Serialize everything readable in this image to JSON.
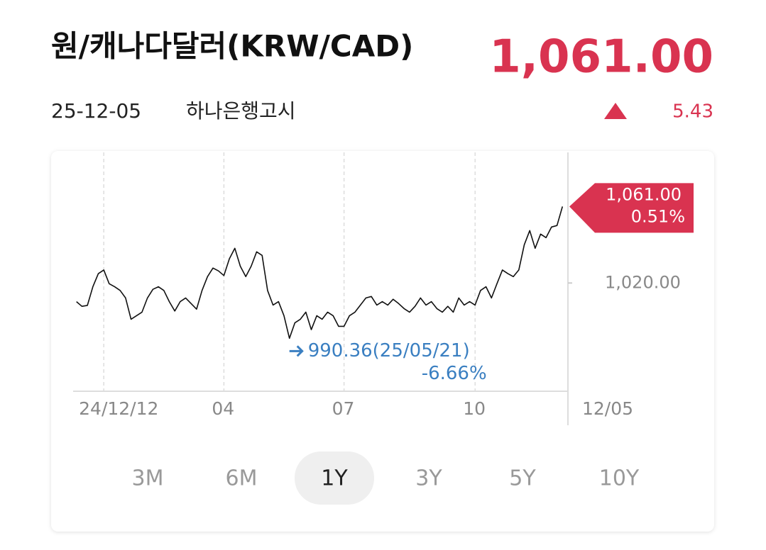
{
  "header": {
    "title": "원/캐나다달러(KRW/CAD)",
    "price": "1,061.00",
    "date": "25-12-05",
    "source": "하나은행고시",
    "change": "5.43"
  },
  "chart_data": {
    "type": "line",
    "x": [
      0,
      1,
      2,
      3,
      4,
      5,
      6,
      7,
      8,
      9,
      10,
      11,
      12,
      13,
      14,
      15,
      16,
      17,
      18,
      19,
      20,
      21,
      22,
      23,
      24,
      25,
      26,
      27,
      28,
      29,
      30,
      31,
      32,
      33,
      34,
      35,
      36,
      37,
      38,
      39,
      40,
      41,
      42,
      43,
      44,
      45,
      46,
      47,
      48,
      49,
      50,
      51,
      52,
      53,
      54,
      55,
      56,
      57,
      58,
      59,
      60,
      61,
      62,
      63,
      64,
      65,
      66,
      67,
      68,
      69,
      70,
      71,
      72,
      73,
      74,
      75,
      76,
      77,
      78,
      79,
      80,
      81,
      82,
      83,
      84,
      85,
      86,
      87,
      88,
      89
    ],
    "series": [
      {
        "color": "#111111",
        "values": [
          1010,
          1007.5,
          1008,
          1018,
          1025,
          1027,
          1019.6,
          1018,
          1016,
          1012,
          1000.6,
          1002.5,
          1004.4,
          1012,
          1016.6,
          1018,
          1016,
          1010,
          1005,
          1010,
          1012,
          1009,
          1006,
          1016,
          1023.4,
          1028,
          1026.5,
          1024,
          1033,
          1038.6,
          1029,
          1023.4,
          1029,
          1036.7,
          1034.8,
          1016,
          1008.2,
          1010,
          1002.5,
          990.36,
          998.7,
          1000.6,
          1004.4,
          995,
          1002.5,
          1000.6,
          1004.4,
          1002.5,
          996.8,
          996.8,
          1002.5,
          1004.4,
          1008.2,
          1012,
          1012.8,
          1008.2,
          1010,
          1008.2,
          1011.3,
          1009,
          1006.3,
          1004.4,
          1007.5,
          1012,
          1008.2,
          1010,
          1006.3,
          1004.4,
          1007.5,
          1004.4,
          1012,
          1008.2,
          1010,
          1008.2,
          1016,
          1018,
          1012,
          1019.6,
          1027,
          1025,
          1023.4,
          1027,
          1040.5,
          1048.1,
          1038.6,
          1046.2,
          1044.3,
          1050,
          1050.8,
          1061
        ]
      }
    ],
    "xlim": [
      -1,
      90
    ],
    "xticks": [
      {
        "value": 5,
        "label": "24/12/12"
      },
      {
        "value": 27,
        "label": "04"
      },
      {
        "value": 49,
        "label": "07"
      },
      {
        "value": 73,
        "label": "10"
      },
      {
        "value": 90,
        "label": "12/05"
      }
    ],
    "ylim": [
      962,
      1090
    ],
    "yticks": [
      {
        "value": 1020,
        "label": "1,020.00"
      }
    ],
    "grid": true,
    "current_label": "1,061.00",
    "current_change": "0.51%",
    "tag_color": "#d93350",
    "low_label": "990.36(25/05/21)",
    "low_change": "-6.66%",
    "low_color": "#3a7fc1"
  },
  "periods": [
    "3M",
    "6M",
    "1Y",
    "3Y",
    "5Y",
    "10Y"
  ]
}
